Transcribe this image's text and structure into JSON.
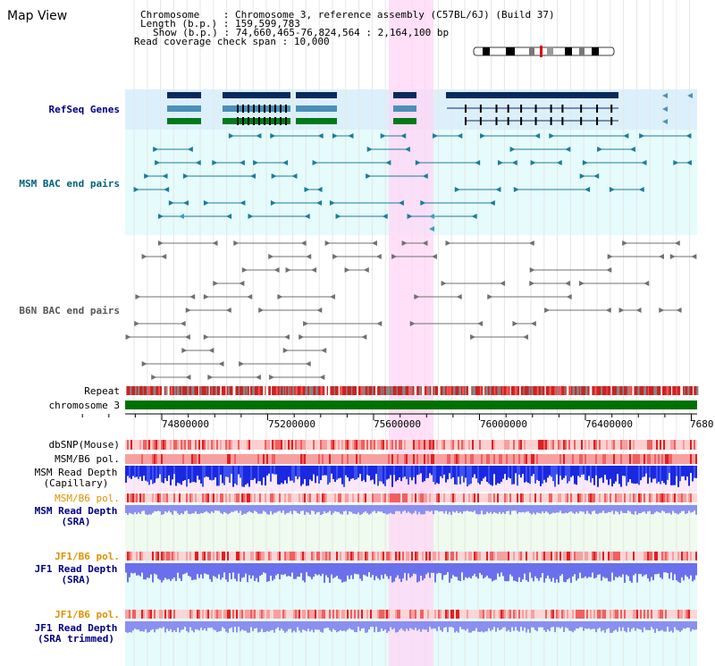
{
  "header": {
    "title": "Map View",
    "chromosome_label": "Chromosome",
    "chromosome_value": "Chromosome 3, reference assembly (C57BL/6J) (Build 37)",
    "length_label": "Length (b.p.)",
    "length_value": "159,599,783",
    "show_label": "Show (b.p.)",
    "show_value": "74,660,465-76,824,564 : 2,164,100 bp",
    "coverage_label": "Read coverage check span",
    "coverage_value": "10,000"
  },
  "tracks": {
    "refseq": "RefSeq Genes",
    "msm_bac": "MSM BAC end pairs",
    "b6n_bac": "B6N BAC end pairs",
    "repeat": "Repeat",
    "chromosome": "chromosome 3",
    "dbsnp": "dbSNP(Mouse)",
    "msm_b6_pol_1": "MSM/B6 pol.",
    "msm_depth_cap_1": "MSM Read Depth",
    "msm_depth_cap_2": "(Capillary)",
    "msm_b6_pol_2": "MSM/B6 pol.",
    "msm_depth_sra_1": "MSM Read Depth",
    "msm_depth_sra_2": "(SRA)",
    "jf1_b6_pol_1": "JF1/B6 pol.",
    "jf1_depth_sra_1": "JF1 Read Depth",
    "jf1_depth_sra_2": "(SRA)",
    "jf1_b6_pol_2": "JF1/B6 pol.",
    "jf1_depth_trim_1": "JF1 Read Depth",
    "jf1_depth_trim_2": "(SRA trimmed)"
  },
  "ruler": {
    "ticks": [
      "74800000",
      "75200000",
      "75600000",
      "76000000",
      "76400000",
      "7680"
    ]
  },
  "colors": {
    "navy": "#000080",
    "teal": "#006080",
    "orange": "#e09000",
    "highlight": "#ffd6f5",
    "chromosome": "#007000",
    "gene_dark": "#0a2a5e",
    "gene_mid": "#4a90b8",
    "gene_green": "#007a1a"
  }
}
